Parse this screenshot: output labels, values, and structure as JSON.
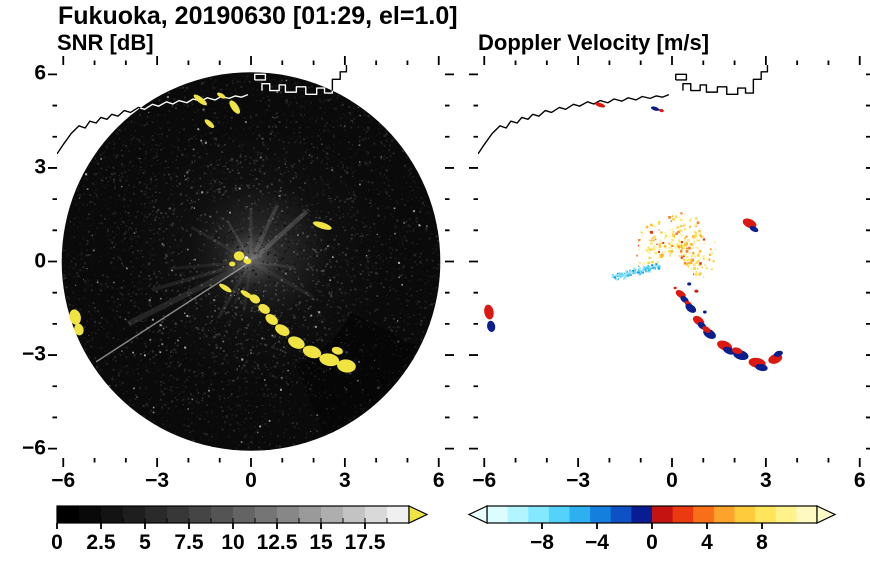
{
  "title": "Fukuoka, 20190630 [01:29, el=1.0]",
  "panels": {
    "snr": {
      "title": "SNR [dB]"
    },
    "doppler": {
      "title": "Doppler Velocity [m/s]"
    }
  },
  "axes": {
    "xlim": [
      -6.2,
      6.2
    ],
    "ylim": [
      -6.3,
      6.3
    ],
    "xtick_values": [
      -6,
      -3,
      0,
      3,
      6
    ],
    "xtick_labels": [
      "−6",
      "−3",
      "0",
      "3",
      "6"
    ],
    "ytick_values": [
      6,
      3,
      0,
      -3,
      -6
    ],
    "ytick_labels": [
      "6",
      "3",
      "0",
      "−3",
      "−6"
    ],
    "minor_step": 1
  },
  "coastline": {
    "color": "#000000",
    "over_disk_color": "#ffffff",
    "paths": [
      [
        [
          -6.2,
          3.45
        ],
        [
          -6.0,
          3.75
        ],
        [
          -5.75,
          4.1
        ],
        [
          -5.5,
          4.35
        ],
        [
          -5.3,
          4.28
        ],
        [
          -5.15,
          4.5
        ],
        [
          -4.95,
          4.44
        ],
        [
          -4.8,
          4.62
        ],
        [
          -4.6,
          4.56
        ],
        [
          -4.45,
          4.72
        ],
        [
          -4.25,
          4.66
        ],
        [
          -4.05,
          4.84
        ],
        [
          -3.85,
          4.78
        ],
        [
          -3.6,
          4.94
        ],
        [
          -3.4,
          4.88
        ],
        [
          -3.15,
          5.04
        ],
        [
          -2.95,
          4.98
        ],
        [
          -2.7,
          5.12
        ],
        [
          -2.5,
          5.05
        ],
        [
          -2.3,
          5.16
        ],
        [
          -2.05,
          5.09
        ],
        [
          -1.85,
          5.21
        ],
        [
          -1.6,
          5.14
        ],
        [
          -1.4,
          5.25
        ],
        [
          -1.15,
          5.18
        ],
        [
          -0.95,
          5.29
        ],
        [
          -0.7,
          5.23
        ],
        [
          -0.5,
          5.31
        ],
        [
          -0.3,
          5.27
        ],
        [
          -0.1,
          5.35
        ]
      ],
      [
        [
          0.35,
          5.48
        ],
        [
          0.35,
          5.7
        ],
        [
          0.6,
          5.7
        ],
        [
          0.6,
          5.48
        ],
        [
          0.9,
          5.48
        ],
        [
          0.9,
          5.66
        ],
        [
          1.1,
          5.66
        ],
        [
          1.1,
          5.43
        ],
        [
          1.45,
          5.43
        ],
        [
          1.45,
          5.6
        ],
        [
          1.75,
          5.6
        ],
        [
          1.75,
          5.36
        ],
        [
          2.1,
          5.36
        ],
        [
          2.1,
          5.56
        ],
        [
          2.35,
          5.56
        ],
        [
          2.35,
          5.4
        ],
        [
          2.6,
          5.4
        ],
        [
          2.6,
          5.84
        ],
        [
          2.85,
          5.84
        ],
        [
          2.85,
          6.08
        ],
        [
          3.05,
          6.08
        ],
        [
          3.05,
          6.32
        ]
      ],
      [
        [
          0.12,
          5.82
        ],
        [
          0.12,
          6.0
        ],
        [
          0.46,
          6.0
        ],
        [
          0.46,
          5.82
        ],
        [
          0.12,
          5.82
        ]
      ]
    ]
  },
  "chart_data": [
    {
      "type": "radar_ppi",
      "name": "snr",
      "title": "SNR [dB]",
      "units": "dB",
      "disk": {
        "cx": 0,
        "cy": 0,
        "radius": 6.05,
        "base_color": "#0a0a0a"
      },
      "haze": [
        {
          "x": 0.2,
          "y": 0.2,
          "r": 4.2,
          "color": "#787878",
          "opacity": 0.1
        },
        {
          "x": 0.3,
          "y": 0.35,
          "r": 2.2,
          "color": "#8a8a8a",
          "opacity": 0.25
        },
        {
          "x": 0.0,
          "y": 0.1,
          "r": 0.9,
          "color": "#cccccc",
          "opacity": 0.3
        }
      ],
      "spokes": [
        {
          "a": 213,
          "len": 5.9,
          "w": 0.045,
          "opacity": 0.7,
          "color": "#bbbbbb"
        },
        {
          "a": 207,
          "len": 4.4,
          "w": 0.18,
          "opacity": 0.2,
          "color": "#8a8a8a"
        },
        {
          "a": 196,
          "len": 3.3,
          "w": 0.12,
          "opacity": 0.18,
          "color": "#808080"
        },
        {
          "a": 185,
          "len": 2.6,
          "w": 0.1,
          "opacity": 0.15,
          "color": "#7a7a7a"
        },
        {
          "a": 42,
          "len": 2.4,
          "w": 0.14,
          "opacity": 0.3,
          "color": "#9a9a9a"
        },
        {
          "a": 65,
          "len": 2.0,
          "w": 0.12,
          "opacity": 0.26,
          "color": "#949494"
        },
        {
          "a": 90,
          "len": 1.7,
          "w": 0.1,
          "opacity": 0.2,
          "color": "#8c8c8c"
        },
        {
          "a": 120,
          "len": 1.5,
          "w": 0.08,
          "opacity": 0.22,
          "color": "#909090"
        },
        {
          "a": 150,
          "len": 2.2,
          "w": 0.1,
          "opacity": 0.16,
          "color": "#828282"
        },
        {
          "a": 240,
          "len": 2.1,
          "w": 0.11,
          "opacity": 0.18,
          "color": "#828282"
        },
        {
          "a": 262,
          "len": 1.6,
          "w": 0.09,
          "opacity": 0.16,
          "color": "#7e7e7e"
        },
        {
          "a": 330,
          "len": 2.3,
          "w": 0.12,
          "opacity": 0.15,
          "color": "#7a7a7a"
        },
        {
          "a": 352,
          "len": 1.4,
          "w": 0.08,
          "opacity": 0.2,
          "color": "#888888"
        }
      ],
      "shadow_wedges": [
        {
          "a0": 293,
          "a1": 333,
          "r0": 3.6,
          "r1": 6.1,
          "opacity": 0.38
        }
      ],
      "noise": {
        "count": 6500,
        "seed": 7,
        "min_gray": 14,
        "max_gray": 80,
        "bright_fraction": 0.02,
        "bright_gray_min": 100,
        "bright_gray_span": 80
      },
      "echo_color": "#f0e442",
      "echoes": [
        {
          "x": -1.62,
          "y": 5.18,
          "w": 0.52,
          "h": 0.18,
          "rot": -38
        },
        {
          "x": -0.95,
          "y": 5.32,
          "w": 0.3,
          "h": 0.14,
          "rot": -30
        },
        {
          "x": -0.52,
          "y": 4.95,
          "w": 0.5,
          "h": 0.22,
          "rot": -55
        },
        {
          "x": -1.33,
          "y": 4.42,
          "w": 0.38,
          "h": 0.16,
          "rot": -42
        },
        {
          "x": 2.28,
          "y": 1.15,
          "w": 0.62,
          "h": 0.2,
          "rot": -18
        },
        {
          "x": -0.38,
          "y": 0.18,
          "w": 0.34,
          "h": 0.3,
          "rot": 0
        },
        {
          "x": -0.12,
          "y": 0.02,
          "w": 0.26,
          "h": 0.2,
          "rot": -20
        },
        {
          "x": -0.6,
          "y": -0.08,
          "w": 0.2,
          "h": 0.16,
          "rot": 0
        },
        {
          "x": -0.15,
          "y": 0.12,
          "w": 0.12,
          "h": 0.1,
          "rot": 0,
          "c": "#ffffff"
        },
        {
          "x": -0.82,
          "y": -0.85,
          "w": 0.46,
          "h": 0.16,
          "rot": -32
        },
        {
          "x": -0.15,
          "y": -1.05,
          "w": 0.42,
          "h": 0.16,
          "rot": -32
        },
        {
          "x": 0.12,
          "y": -1.2,
          "w": 0.36,
          "h": 0.26,
          "rot": -32
        },
        {
          "x": 0.42,
          "y": -1.52,
          "w": 0.4,
          "h": 0.28,
          "rot": -32
        },
        {
          "x": 0.66,
          "y": -1.86,
          "w": 0.44,
          "h": 0.3,
          "rot": -35
        },
        {
          "x": 1.0,
          "y": -2.2,
          "w": 0.5,
          "h": 0.32,
          "rot": -30
        },
        {
          "x": 1.45,
          "y": -2.6,
          "w": 0.56,
          "h": 0.36,
          "rot": -24
        },
        {
          "x": 1.95,
          "y": -2.9,
          "w": 0.6,
          "h": 0.38,
          "rot": -17
        },
        {
          "x": 2.5,
          "y": -3.15,
          "w": 0.64,
          "h": 0.4,
          "rot": -11
        },
        {
          "x": 3.05,
          "y": -3.35,
          "w": 0.6,
          "h": 0.42,
          "rot": -7
        },
        {
          "x": 2.76,
          "y": -2.86,
          "w": 0.36,
          "h": 0.24,
          "rot": -14
        },
        {
          "x": -5.62,
          "y": -1.78,
          "w": 0.36,
          "h": 0.5,
          "rot": 14
        },
        {
          "x": -5.5,
          "y": -2.18,
          "w": 0.3,
          "h": 0.38,
          "rot": 14
        }
      ],
      "colorbar": {
        "range": [
          0,
          20
        ],
        "colors": [
          "#000000",
          "#090909",
          "#131313",
          "#1e1e1e",
          "#2a2a2a",
          "#373737",
          "#454545",
          "#545454",
          "#646464",
          "#757575",
          "#878787",
          "#9a9a9a",
          "#aeaeae",
          "#c3c3c3",
          "#d9d9d9",
          "#f0f0f0"
        ],
        "tick_values": [
          0,
          2.5,
          5,
          7.5,
          10,
          12.5,
          15,
          17.5
        ],
        "tick_labels": [
          "0",
          "2.5",
          "5",
          "7.5",
          "10",
          "12.5",
          "15",
          "17.5"
        ],
        "segment_ticks": true,
        "over_arrow_color": "#f0e442"
      }
    },
    {
      "type": "radar_ppi",
      "name": "doppler",
      "title": "Doppler Velocity [m/s]",
      "units": "m/s",
      "background": "#ffffff",
      "fan": {
        "cx": 0.1,
        "cy": 0.3,
        "rmin": 0.12,
        "rmax": 1.3,
        "a0": -50,
        "a1": 210,
        "count": 330,
        "seed": 13,
        "palette": [
          "#ffd83e",
          "#ffe87a",
          "#fff5ac",
          "#fdbb2c",
          "#f9822a",
          "#e63018"
        ],
        "weights": [
          0.26,
          0.26,
          0.18,
          0.15,
          0.1,
          0.05
        ]
      },
      "streak": {
        "cx": -1.2,
        "cy": -0.3,
        "len": 1.6,
        "wid": 0.26,
        "rot": 16,
        "count": 140,
        "seed": 5,
        "palette": [
          "#49ccf5",
          "#7adef8",
          "#22aeea",
          "#a8ecfb",
          "#0d8ed4"
        ],
        "weights": [
          0.28,
          0.24,
          0.2,
          0.16,
          0.12
        ]
      },
      "blob_colors": {
        "R": "#dc1810",
        "N": "#0b1e8e",
        "O": "#f07818"
      },
      "echoes": [
        {
          "x": 0.28,
          "y": -1.05,
          "w": 0.36,
          "h": 0.22,
          "rot": -35,
          "c": "R"
        },
        {
          "x": 0.4,
          "y": -1.22,
          "w": 0.3,
          "h": 0.18,
          "rot": -35,
          "c": "N"
        },
        {
          "x": 0.52,
          "y": -1.36,
          "w": 0.26,
          "h": 0.16,
          "rot": -35,
          "c": "R"
        },
        {
          "x": 0.6,
          "y": -1.5,
          "w": 0.38,
          "h": 0.24,
          "rot": -35,
          "c": "N"
        },
        {
          "x": 0.85,
          "y": -1.9,
          "w": 0.4,
          "h": 0.26,
          "rot": -35,
          "c": "R"
        },
        {
          "x": 0.96,
          "y": -2.06,
          "w": 0.3,
          "h": 0.2,
          "rot": -35,
          "c": "N"
        },
        {
          "x": 1.2,
          "y": -2.32,
          "w": 0.44,
          "h": 0.28,
          "rot": -30,
          "c": "N"
        },
        {
          "x": 1.1,
          "y": -2.18,
          "w": 0.3,
          "h": 0.18,
          "rot": -30,
          "c": "R"
        },
        {
          "x": 1.68,
          "y": -2.7,
          "w": 0.5,
          "h": 0.3,
          "rot": -22,
          "c": "R"
        },
        {
          "x": 1.82,
          "y": -2.86,
          "w": 0.4,
          "h": 0.22,
          "rot": -22,
          "c": "N"
        },
        {
          "x": 2.2,
          "y": -3.0,
          "w": 0.5,
          "h": 0.3,
          "rot": -15,
          "c": "N"
        },
        {
          "x": 2.08,
          "y": -2.86,
          "w": 0.34,
          "h": 0.2,
          "rot": -15,
          "c": "R"
        },
        {
          "x": 2.72,
          "y": -3.25,
          "w": 0.55,
          "h": 0.32,
          "rot": -10,
          "c": "R"
        },
        {
          "x": 2.86,
          "y": -3.4,
          "w": 0.4,
          "h": 0.22,
          "rot": -10,
          "c": "N"
        },
        {
          "x": 3.3,
          "y": -3.12,
          "w": 0.46,
          "h": 0.3,
          "rot": 20,
          "c": "R"
        },
        {
          "x": 3.4,
          "y": -2.96,
          "w": 0.3,
          "h": 0.18,
          "rot": 20,
          "c": "N"
        },
        {
          "x": -5.85,
          "y": -1.62,
          "w": 0.3,
          "h": 0.48,
          "rot": 10,
          "c": "R"
        },
        {
          "x": -5.78,
          "y": -2.08,
          "w": 0.26,
          "h": 0.36,
          "rot": 10,
          "c": "N"
        },
        {
          "x": 2.48,
          "y": 1.22,
          "w": 0.46,
          "h": 0.28,
          "rot": -25,
          "c": "R"
        },
        {
          "x": 2.62,
          "y": 1.04,
          "w": 0.3,
          "h": 0.16,
          "rot": -25,
          "c": "N"
        },
        {
          "x": -2.3,
          "y": 5.02,
          "w": 0.34,
          "h": 0.13,
          "rot": -18,
          "c": "R"
        },
        {
          "x": -0.54,
          "y": 4.9,
          "w": 0.28,
          "h": 0.12,
          "rot": -18,
          "c": "N"
        },
        {
          "x": -0.34,
          "y": 4.84,
          "w": 0.16,
          "h": 0.1,
          "rot": -18,
          "c": "R"
        },
        {
          "x": 0.55,
          "y": -0.72,
          "w": 0.13,
          "h": 0.1,
          "rot": 0,
          "c": "N"
        },
        {
          "x": 0.78,
          "y": -0.95,
          "w": 0.13,
          "h": 0.1,
          "rot": 0,
          "c": "R"
        },
        {
          "x": 0.1,
          "y": -0.85,
          "w": 0.1,
          "h": 0.08,
          "rot": 0,
          "c": "R"
        },
        {
          "x": 1.05,
          "y": -1.62,
          "w": 0.12,
          "h": 0.1,
          "rot": 0,
          "c": "N"
        }
      ],
      "colorbar": {
        "range": [
          -12,
          12
        ],
        "colors": [
          "#dcfdff",
          "#b2f5ff",
          "#84e9ff",
          "#55d2fa",
          "#2eb0f0",
          "#157fdd",
          "#0d51c4",
          "#091d92",
          "#c51311",
          "#ea3b10",
          "#f96f19",
          "#fda32b",
          "#fecb3c",
          "#fee55c",
          "#fef28a",
          "#fdf9c0"
        ],
        "tick_values": [
          -8,
          -4,
          0,
          4,
          8
        ],
        "tick_labels": [
          "−8",
          "−4",
          "0",
          "4",
          "8"
        ],
        "under_arrow_color": "#eafdff",
        "over_arrow_color": "#fffbc8"
      }
    }
  ]
}
